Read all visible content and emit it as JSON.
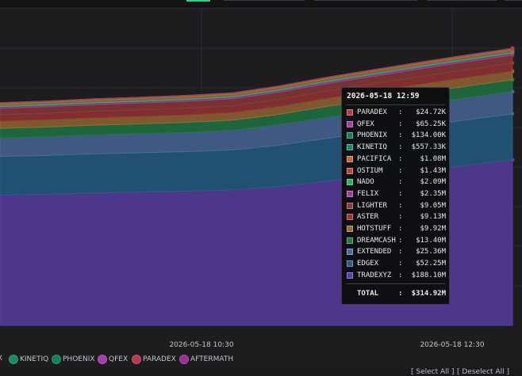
{
  "colors": {
    "background": "#1d1d20",
    "grid": "#2c2c30"
  },
  "chart_data": {
    "type": "area",
    "stacked": true,
    "grid": true,
    "x_tick_labels": [
      "2026-05-18 10:30",
      "2026-05-18 12:30"
    ],
    "series": [
      {
        "name": "TRADEXYZ",
        "color": "#5b3fa8",
        "values": [
          148.0,
          149.0,
          150.5,
          151.5,
          152.5,
          154.0,
          158.0,
          164.0,
          170.0,
          176.0,
          182.0,
          188.1
        ]
      },
      {
        "name": "EDGEX",
        "color": "#245f86",
        "values": [
          44.0,
          44.2,
          44.5,
          44.7,
          45.0,
          45.5,
          47.0,
          48.5,
          49.5,
          50.5,
          51.5,
          52.25
        ]
      },
      {
        "name": "EXTENDED",
        "color": "#4a6a9e",
        "values": [
          21.0,
          21.2,
          21.4,
          21.6,
          21.8,
          22.2,
          23.0,
          23.8,
          24.3,
          24.8,
          25.1,
          25.36
        ]
      },
      {
        "name": "DREAMCASH",
        "color": "#1f7a43",
        "values": [
          11.0,
          11.1,
          11.2,
          11.3,
          11.4,
          11.6,
          12.0,
          12.4,
          12.7,
          13.0,
          13.2,
          13.4
        ]
      },
      {
        "name": "HOTSTUFF",
        "color": "#9a6a33",
        "values": [
          8.1,
          8.2,
          8.3,
          8.4,
          8.5,
          8.6,
          8.9,
          9.2,
          9.4,
          9.6,
          9.8,
          9.92
        ]
      },
      {
        "name": "ASTER",
        "color": "#9b3535",
        "values": [
          7.4,
          7.5,
          7.6,
          7.7,
          7.8,
          7.9,
          8.2,
          8.4,
          8.6,
          8.8,
          9.0,
          9.13
        ]
      },
      {
        "name": "LIGHTER",
        "color": "#8f3a3a",
        "values": [
          7.3,
          7.4,
          7.5,
          7.6,
          7.7,
          7.8,
          8.1,
          8.4,
          8.6,
          8.8,
          8.95,
          9.05
        ]
      },
      {
        "name": "FELIX",
        "color": "#a03ea0",
        "values": [
          1.9,
          1.9,
          1.95,
          1.95,
          2.0,
          2.0,
          2.1,
          2.2,
          2.25,
          2.3,
          2.33,
          2.35
        ]
      },
      {
        "name": "NADO",
        "color": "#2cb55a",
        "values": [
          1.7,
          1.7,
          1.75,
          1.75,
          1.8,
          1.8,
          1.9,
          1.95,
          2.0,
          2.05,
          2.07,
          2.09
        ]
      },
      {
        "name": "OSTIUM",
        "color": "#b84444",
        "values": [
          1.2,
          1.2,
          1.22,
          1.24,
          1.26,
          1.28,
          1.32,
          1.36,
          1.39,
          1.41,
          1.42,
          1.43
        ]
      },
      {
        "name": "PACIFICA",
        "color": "#c4672f",
        "values": [
          0.9,
          0.9,
          0.92,
          0.94,
          0.95,
          0.97,
          1.0,
          1.03,
          1.05,
          1.06,
          1.07,
          1.08
        ]
      },
      {
        "name": "KINETIQ",
        "color": "#1a8a60",
        "values": [
          0.46,
          0.47,
          0.48,
          0.49,
          0.5,
          0.51,
          0.52,
          0.53,
          0.54,
          0.55,
          0.556,
          0.557
        ]
      },
      {
        "name": "PHOENIX",
        "color": "#13805a",
        "values": [
          0.11,
          0.11,
          0.115,
          0.118,
          0.12,
          0.122,
          0.125,
          0.128,
          0.13,
          0.132,
          0.133,
          0.134
        ]
      },
      {
        "name": "QFEX",
        "color": "#a53cb0",
        "values": [
          0.05,
          0.05,
          0.052,
          0.054,
          0.056,
          0.058,
          0.06,
          0.062,
          0.063,
          0.064,
          0.065,
          0.065
        ]
      },
      {
        "name": "PARADEX",
        "color": "#b83a50",
        "values": [
          0.02,
          0.02,
          0.021,
          0.021,
          0.022,
          0.022,
          0.023,
          0.023,
          0.024,
          0.024,
          0.0247,
          0.0247
        ]
      }
    ]
  },
  "tooltip": {
    "time": "2026-05-18 12:59",
    "rows": [
      {
        "name": "PARADEX",
        "value": "$24.72K",
        "color": "#b83a50"
      },
      {
        "name": "QFEX",
        "value": "$65.25K",
        "color": "#a53cb0"
      },
      {
        "name": "PHOENIX",
        "value": "$134.00K",
        "color": "#13805a"
      },
      {
        "name": "KINETIQ",
        "value": "$557.33K",
        "color": "#1a8a60"
      },
      {
        "name": "PACIFICA",
        "value": "$1.08M",
        "color": "#c4672f"
      },
      {
        "name": "OSTIUM",
        "value": "$1.43M",
        "color": "#b84444"
      },
      {
        "name": "NADO",
        "value": "$2.09M",
        "color": "#2cb55a"
      },
      {
        "name": "FELIX",
        "value": "$2.35M",
        "color": "#a03ea0"
      },
      {
        "name": "LIGHTER",
        "value": "$9.05M",
        "color": "#8f3a3a"
      },
      {
        "name": "ASTER",
        "value": "$9.13M",
        "color": "#9b3535"
      },
      {
        "name": "HOTSTUFF",
        "value": "$9.92M",
        "color": "#9a6a33"
      },
      {
        "name": "DREAMCASH",
        "value": "$13.40M",
        "color": "#1f7a43"
      },
      {
        "name": "EXTENDED",
        "value": "$25.36M",
        "color": "#4a6a9e"
      },
      {
        "name": "EDGEX",
        "value": "$52.25M",
        "color": "#245f86"
      },
      {
        "name": "TRADEXYZ",
        "value": "$188.10M",
        "color": "#5b3fa8"
      }
    ],
    "total_label": "TOTAL",
    "total_value": "$314.92M"
  },
  "legend": {
    "cut_text": "X",
    "items": [
      {
        "label": "KINETIQ",
        "color": "#1a8a60"
      },
      {
        "label": "PHOENIX",
        "color": "#13805a"
      },
      {
        "label": "QFEX",
        "color": "#a53cb0"
      },
      {
        "label": "PARADEX",
        "color": "#b83a50"
      },
      {
        "label": "AFTERMATH",
        "color": "#9a2f9a"
      }
    ]
  },
  "controls": {
    "select_all": "[ Select All ]",
    "deselect_all": "[ Deselect All ]"
  }
}
